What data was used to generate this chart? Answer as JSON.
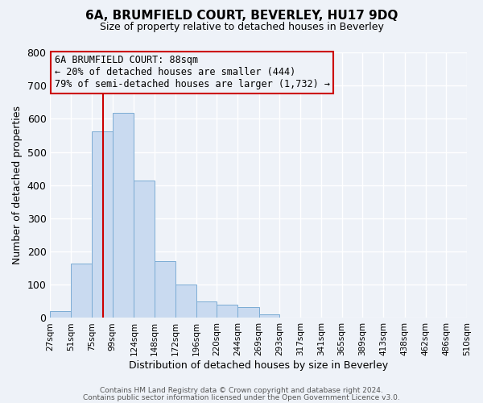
{
  "title": "6A, BRUMFIELD COURT, BEVERLEY, HU17 9DQ",
  "subtitle": "Size of property relative to detached houses in Beverley",
  "xlabel": "Distribution of detached houses by size in Beverley",
  "ylabel": "Number of detached properties",
  "bin_labels": [
    "27sqm",
    "51sqm",
    "75sqm",
    "99sqm",
    "124sqm",
    "148sqm",
    "172sqm",
    "196sqm",
    "220sqm",
    "244sqm",
    "269sqm",
    "293sqm",
    "317sqm",
    "341sqm",
    "365sqm",
    "389sqm",
    "413sqm",
    "438sqm",
    "462sqm",
    "486sqm",
    "510sqm"
  ],
  "bin_edges": [
    27,
    51,
    75,
    99,
    124,
    148,
    172,
    196,
    220,
    244,
    269,
    293,
    317,
    341,
    365,
    389,
    413,
    438,
    462,
    486,
    510
  ],
  "bar_heights": [
    20,
    165,
    562,
    617,
    415,
    170,
    100,
    50,
    40,
    33,
    12,
    0,
    0,
    0,
    0,
    0,
    0,
    0,
    0,
    0,
    8
  ],
  "bar_color": "#c9daf0",
  "bar_edge_color": "#7bacd4",
  "property_size": 88,
  "red_line_color": "#cc0000",
  "annotation_box_edge": "#cc0000",
  "annotation_title": "6A BRUMFIELD COURT: 88sqm",
  "annotation_line1": "← 20% of detached houses are smaller (444)",
  "annotation_line2": "79% of semi-detached houses are larger (1,732) →",
  "ylim": [
    0,
    800
  ],
  "yticks": [
    0,
    100,
    200,
    300,
    400,
    500,
    600,
    700,
    800
  ],
  "footer1": "Contains HM Land Registry data © Crown copyright and database right 2024.",
  "footer2": "Contains public sector information licensed under the Open Government Licence v3.0.",
  "background_color": "#eef2f8",
  "plot_bg_color": "#eef2f8",
  "grid_color": "#ffffff",
  "title_fontsize": 11,
  "subtitle_fontsize": 9
}
